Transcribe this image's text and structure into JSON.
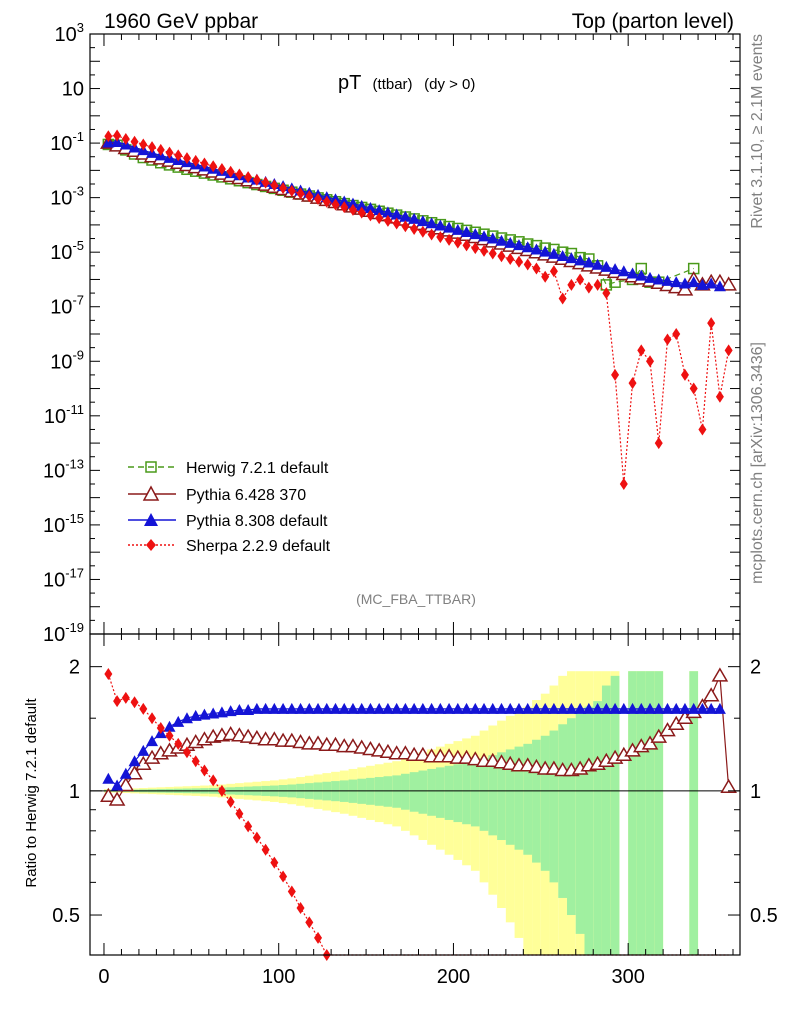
{
  "header": {
    "left": "1960 GeV ppbar",
    "right": "Top (parton level)"
  },
  "side": {
    "rivet": "Rivet 3.1.10, ≥ 2.1M events",
    "mcplots": "mcplots.cern.ch [arXiv:1306.3436]"
  },
  "analysis": "(MC_FBA_TTBAR)",
  "colors": {
    "herwig": "#4a9a1a",
    "pythia6": "#8b1a1a",
    "pythia8": "#1414d6",
    "sherpa": "#ee1111",
    "band_green": "#a0f0a0",
    "band_yellow": "#ffff99"
  },
  "chart_data": [
    {
      "type": "line",
      "title": "pT (ttbar) (dy > 0)",
      "title_main": "pT",
      "title_sub": "(ttbar)",
      "title_cond": "(dy > 0)",
      "xlabel": "",
      "ylabel": "",
      "yscale": "log",
      "xlim": [
        -8,
        364
      ],
      "ylim_exp": [
        -19,
        3
      ],
      "ytick_labels": [
        {
          "exp": 3,
          "base": "10",
          "sup": "3"
        },
        {
          "exp": 1,
          "base": "10",
          "sup": ""
        },
        {
          "exp": -1,
          "base": "10",
          "sup": "-1"
        },
        {
          "exp": -3,
          "base": "10",
          "sup": "-3"
        },
        {
          "exp": -5,
          "base": "10",
          "sup": "-5"
        },
        {
          "exp": -7,
          "base": "10",
          "sup": "-7"
        },
        {
          "exp": -9,
          "base": "10",
          "sup": "-9"
        },
        {
          "exp": -11,
          "base": "10",
          "sup": "-11"
        },
        {
          "exp": -13,
          "base": "10",
          "sup": "-13"
        },
        {
          "exp": -15,
          "base": "10",
          "sup": "-15"
        },
        {
          "exp": -17,
          "base": "10",
          "sup": "-17"
        },
        {
          "exp": -19,
          "base": "10",
          "sup": "-19"
        }
      ],
      "legend": [
        {
          "key": "herwig",
          "label": "Herwig 7.2.1 default"
        },
        {
          "key": "pythia6",
          "label": "Pythia 6.428 370"
        },
        {
          "key": "pythia8",
          "label": "Pythia 8.308 default"
        },
        {
          "key": "sherpa",
          "label": "Sherpa 2.2.9 default"
        }
      ],
      "bin_width": 5,
      "x": [
        2.5,
        7.5,
        12.5,
        17.5,
        22.5,
        27.5,
        32.5,
        37.5,
        42.5,
        47.5,
        52.5,
        57.5,
        62.5,
        67.5,
        72.5,
        77.5,
        82.5,
        87.5,
        92.5,
        97.5,
        102.5,
        107.5,
        112.5,
        117.5,
        122.5,
        127.5,
        132.5,
        137.5,
        142.5,
        147.5,
        152.5,
        157.5,
        162.5,
        167.5,
        172.5,
        177.5,
        182.5,
        187.5,
        192.5,
        197.5,
        202.5,
        207.5,
        212.5,
        217.5,
        222.5,
        227.5,
        232.5,
        237.5,
        242.5,
        247.5,
        252.5,
        257.5,
        262.5,
        267.5,
        272.5,
        277.5,
        282.5,
        287.5,
        292.5,
        297.5,
        302.5,
        307.5,
        312.5,
        317.5,
        322.5,
        327.5,
        332.5,
        337.5,
        342.5,
        347.5,
        352.5,
        357.5
      ],
      "series": [
        {
          "name": "herwig",
          "log10y": [
            -1.05,
            -1.08,
            -1.25,
            -1.4,
            -1.53,
            -1.62,
            -1.72,
            -1.8,
            -1.88,
            -1.96,
            -2.03,
            -2.1,
            -2.17,
            -2.24,
            -2.31,
            -2.38,
            -2.45,
            -2.52,
            -2.59,
            -2.66,
            -2.73,
            -2.8,
            -2.87,
            -2.94,
            -3.01,
            -3.08,
            -3.15,
            -3.22,
            -3.29,
            -3.36,
            -3.43,
            -3.5,
            -3.57,
            -3.64,
            -3.71,
            -3.78,
            -3.85,
            -3.92,
            -3.99,
            -4.06,
            -4.13,
            -4.2,
            -4.27,
            -4.34,
            -4.41,
            -4.48,
            -4.55,
            -4.62,
            -4.7,
            -4.76,
            -4.85,
            -4.9,
            -5.0,
            -5.05,
            -5.2,
            -5.25,
            -5.5,
            -6.2,
            -6.1,
            null,
            -6.0,
            -5.6,
            -6.1,
            -6.1,
            null,
            null,
            null,
            -5.6,
            null,
            null,
            null,
            null
          ]
        },
        {
          "name": "pythia6",
          "log10y": [
            -1.0,
            -1.1,
            -1.2,
            -1.3,
            -1.4,
            -1.5,
            -1.58,
            -1.66,
            -1.74,
            -1.82,
            -1.9,
            -1.98,
            -2.06,
            -2.14,
            -2.22,
            -2.3,
            -2.38,
            -2.46,
            -2.54,
            -2.62,
            -2.7,
            -2.78,
            -2.86,
            -2.94,
            -3.02,
            -3.1,
            -3.18,
            -3.26,
            -3.34,
            -3.42,
            -3.5,
            -3.58,
            -3.66,
            -3.74,
            -3.82,
            -3.9,
            -3.98,
            -4.06,
            -4.14,
            -4.22,
            -4.3,
            -4.38,
            -4.46,
            -4.54,
            -4.62,
            -4.7,
            -4.78,
            -4.86,
            -4.94,
            -5.02,
            -5.1,
            -5.18,
            -5.26,
            -5.34,
            -5.42,
            -5.5,
            -5.58,
            -5.66,
            -5.74,
            -5.82,
            -5.9,
            -5.98,
            -6.06,
            -6.14,
            -6.22,
            -6.3,
            -6.38,
            -6.0,
            -6.2,
            -6.1,
            -6.1,
            -6.2
          ]
        },
        {
          "name": "pythia8",
          "log10y": [
            -0.98,
            -0.96,
            -1.05,
            -1.16,
            -1.26,
            -1.36,
            -1.45,
            -1.54,
            -1.62,
            -1.7,
            -1.78,
            -1.86,
            -1.94,
            -2.02,
            -2.1,
            -2.18,
            -2.26,
            -2.34,
            -2.42,
            -2.5,
            -2.58,
            -2.66,
            -2.74,
            -2.82,
            -2.9,
            -2.98,
            -3.06,
            -3.14,
            -3.22,
            -3.3,
            -3.38,
            -3.46,
            -3.54,
            -3.62,
            -3.7,
            -3.78,
            -3.86,
            -3.94,
            -4.02,
            -4.1,
            -4.18,
            -4.26,
            -4.34,
            -4.42,
            -4.5,
            -4.58,
            -4.66,
            -4.74,
            -4.82,
            -4.9,
            -4.98,
            -5.06,
            -5.14,
            -5.22,
            -5.3,
            -5.38,
            -5.46,
            -5.54,
            -5.62,
            -5.7,
            -5.78,
            -5.86,
            -5.94,
            -6.0,
            -6.05,
            -6.1,
            -6.15,
            -6.1,
            -6.2,
            -6.15,
            -6.25,
            null
          ]
        },
        {
          "name": "sherpa",
          "log10y": [
            -0.75,
            -0.72,
            -0.85,
            -0.95,
            -1.05,
            -1.15,
            -1.25,
            -1.35,
            -1.45,
            -1.55,
            -1.65,
            -1.75,
            -1.85,
            -1.95,
            -2.05,
            -2.15,
            -2.25,
            -2.35,
            -2.45,
            -2.55,
            -2.65,
            -2.75,
            -2.85,
            -2.95,
            -3.05,
            -3.15,
            -3.25,
            -3.35,
            -3.45,
            -3.55,
            -3.65,
            -3.75,
            -3.85,
            -3.95,
            -4.05,
            -4.15,
            -4.25,
            -4.35,
            -4.45,
            -4.55,
            -4.65,
            -4.75,
            -4.85,
            -4.95,
            -5.05,
            -5.15,
            -5.25,
            -5.35,
            -5.45,
            -5.6,
            -5.9,
            -5.7,
            -6.7,
            -6.2,
            -6.0,
            -6.3,
            -6.2,
            -6.5,
            -9.5,
            -13.5,
            -9.8,
            -8.6,
            -9.0,
            -12.0,
            -8.2,
            -8.0,
            -9.5,
            -10.0,
            -11.5,
            -7.6,
            -10.3,
            -8.6
          ]
        }
      ]
    },
    {
      "type": "line",
      "ylabel": "Ratio to Herwig 7.2.1 default",
      "ylim": [
        0.4,
        2.4
      ],
      "yscale": "log",
      "yticks": [
        0.5,
        1,
        2
      ],
      "ytick_labels": [
        "0.5",
        "1",
        "2"
      ],
      "xlim": [
        -8,
        364
      ],
      "xticks": [
        0,
        100,
        200,
        300
      ],
      "xtick_labels": [
        "0",
        "100",
        "200",
        "300"
      ],
      "band_inner_rel": [
        0.005,
        0.005,
        0.006,
        0.007,
        0.008,
        0.009,
        0.01,
        0.011,
        0.012,
        0.013,
        0.014,
        0.015,
        0.016,
        0.018,
        0.02,
        0.022,
        0.024,
        0.026,
        0.028,
        0.03,
        0.033,
        0.036,
        0.04,
        0.044,
        0.048,
        0.052,
        0.056,
        0.06,
        0.065,
        0.07,
        0.075,
        0.08,
        0.085,
        0.09,
        0.1,
        0.11,
        0.12,
        0.13,
        0.14,
        0.15,
        0.16,
        0.17,
        0.18,
        0.2,
        0.22,
        0.24,
        0.26,
        0.28,
        0.3,
        0.33,
        0.36,
        0.4,
        0.45,
        0.5,
        0.55,
        0.6,
        0.65,
        0.8,
        0.9,
        0.0,
        0.95,
        0.95,
        0.95,
        0.95,
        0.0,
        0.0,
        0.0,
        0.95,
        0.0,
        0.0,
        0.0,
        0.0
      ],
      "band_outer_rel": [
        0.01,
        0.01,
        0.012,
        0.014,
        0.016,
        0.018,
        0.02,
        0.022,
        0.024,
        0.026,
        0.028,
        0.03,
        0.032,
        0.036,
        0.04,
        0.044,
        0.048,
        0.052,
        0.056,
        0.06,
        0.066,
        0.072,
        0.08,
        0.088,
        0.096,
        0.104,
        0.112,
        0.12,
        0.13,
        0.14,
        0.15,
        0.16,
        0.17,
        0.18,
        0.2,
        0.22,
        0.24,
        0.26,
        0.28,
        0.3,
        0.32,
        0.34,
        0.36,
        0.4,
        0.44,
        0.48,
        0.52,
        0.56,
        0.6,
        0.66,
        0.72,
        0.8,
        0.9,
        0.95,
        0.95,
        0.95,
        0.95,
        0.95,
        0.95,
        0.0,
        0.95,
        0.95,
        0.95,
        0.95,
        0.0,
        0.0,
        0.0,
        0.95,
        0.0,
        0.0,
        0.0,
        0.0
      ],
      "series": [
        {
          "name": "pythia6",
          "ratio": [
            0.97,
            0.95,
            1.03,
            1.1,
            1.16,
            1.2,
            1.23,
            1.25,
            1.27,
            1.29,
            1.31,
            1.33,
            1.35,
            1.36,
            1.37,
            1.36,
            1.35,
            1.34,
            1.33,
            1.33,
            1.32,
            1.32,
            1.31,
            1.3,
            1.3,
            1.29,
            1.29,
            1.28,
            1.28,
            1.27,
            1.26,
            1.25,
            1.24,
            1.23,
            1.23,
            1.22,
            1.22,
            1.21,
            1.21,
            1.21,
            1.2,
            1.2,
            1.19,
            1.18,
            1.18,
            1.17,
            1.16,
            1.15,
            1.15,
            1.14,
            1.13,
            1.13,
            1.12,
            1.12,
            1.13,
            1.15,
            1.16,
            1.18,
            1.2,
            1.22,
            1.25,
            1.28,
            1.3,
            1.35,
            1.4,
            1.45,
            1.5,
            1.55,
            1.6,
            1.7,
            1.9,
            1.02
          ]
        },
        {
          "name": "pythia8",
          "ratio": [
            1.07,
            1.03,
            1.1,
            1.18,
            1.25,
            1.32,
            1.38,
            1.43,
            1.47,
            1.5,
            1.52,
            1.53,
            1.54,
            1.55,
            1.56,
            1.57,
            1.57,
            1.58,
            1.58,
            1.58,
            1.58,
            1.58,
            1.58,
            1.58,
            1.58,
            1.58,
            1.58,
            1.58,
            1.58,
            1.58,
            1.58,
            1.58,
            1.58,
            1.58,
            1.58,
            1.58,
            1.58,
            1.58,
            1.58,
            1.58,
            1.58,
            1.58,
            1.58,
            1.58,
            1.58,
            1.58,
            1.58,
            1.58,
            1.58,
            1.58,
            1.58,
            1.58,
            1.58,
            1.58,
            1.58,
            1.58,
            1.58,
            1.58,
            1.58,
            1.58,
            1.58,
            1.58,
            1.58,
            1.58,
            1.58,
            1.58,
            1.58,
            1.58,
            1.58,
            1.58,
            1.58,
            null
          ]
        },
        {
          "name": "sherpa",
          "ratio": [
            1.92,
            1.65,
            1.68,
            1.64,
            1.58,
            1.5,
            1.42,
            1.36,
            1.3,
            1.24,
            1.18,
            1.12,
            1.06,
            1.0,
            0.94,
            0.88,
            0.82,
            0.77,
            0.72,
            0.67,
            0.62,
            0.57,
            0.52,
            0.48,
            0.44,
            0.4,
            0.37,
            0.35,
            0.33,
            0.31,
            0.3,
            0.29,
            0.28,
            0.27,
            0.26,
            0.25,
            0.24,
            0.23,
            0.22,
            0.21,
            0.2,
            0.19,
            0.18,
            0.17,
            0.16,
            0.15,
            0.14,
            0.13,
            0.12,
            0.11,
            0.1,
            0.09,
            0.08,
            0.07,
            0.06,
            0.05,
            0.04,
            0.03,
            0.02,
            0.01,
            0.01,
            0.01,
            0.01,
            0.01,
            0.01,
            0.01,
            0.01,
            0.01,
            0.01,
            0.01,
            0.01,
            0.01
          ]
        }
      ]
    }
  ]
}
